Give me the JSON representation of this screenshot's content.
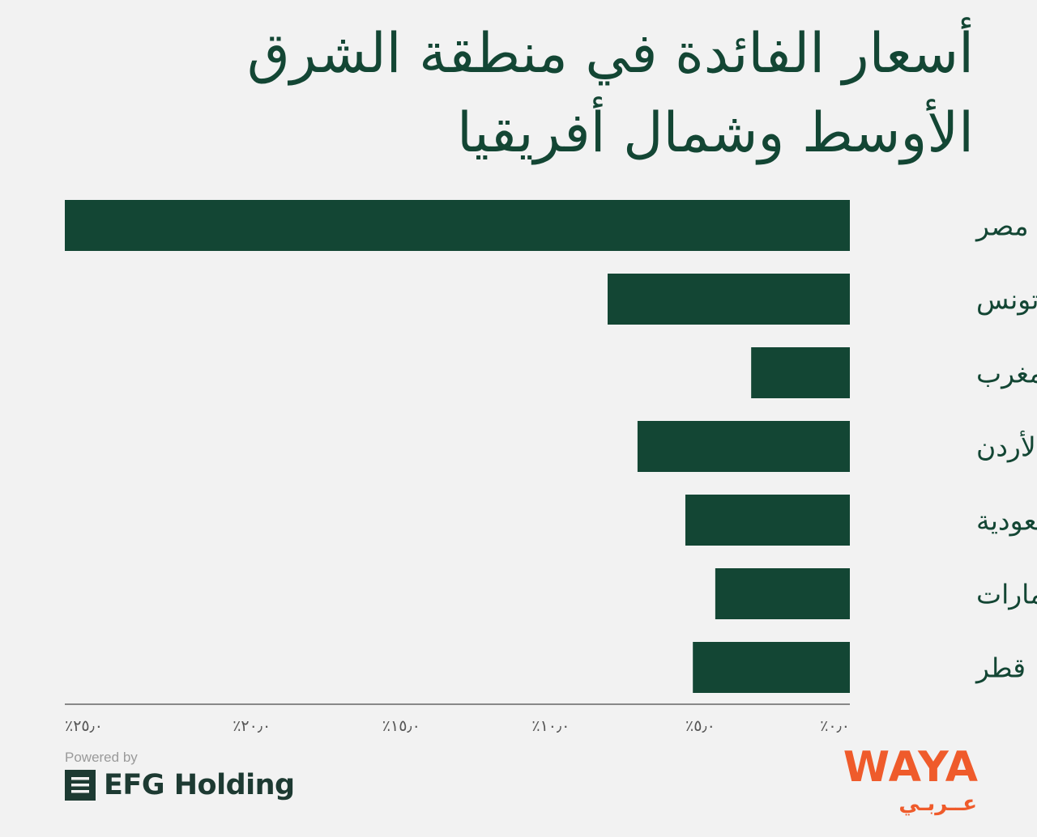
{
  "chart_data": {
    "type": "bar",
    "orientation": "horizontal",
    "title": "أسعار الفائدة في منطقة الشرق الأوسط وشمال أفريقيا",
    "categories": [
      "مصر",
      "تونس",
      "المغرب",
      "الأردن",
      "السعودية",
      "الإمارات",
      "قطر"
    ],
    "values": [
      26.25,
      8.1,
      3.3,
      7.1,
      5.5,
      4.5,
      5.25
    ],
    "unit": "%",
    "xlim": [
      0,
      26.25
    ],
    "x_direction": "right-to-left",
    "ticks": [
      0,
      5,
      10,
      15,
      20,
      25
    ],
    "tick_labels": [
      "٪٠٫٠",
      "٪٥٫٠",
      "٪١٠٫٠",
      "٪١٥٫٠",
      "٪٢٠٫٠",
      "٪٢٥٫٠"
    ],
    "grid": false,
    "bar_color": "#134634",
    "axis_color": "#888888"
  },
  "footer": {
    "powered_by": "Powered by",
    "efg_brand": "EFG Holding",
    "efg_icon": "efg-logo-icon",
    "waya_latin": "WAYA",
    "waya_arabic": "عــربـي",
    "waya_color": "#ef5b2b"
  }
}
